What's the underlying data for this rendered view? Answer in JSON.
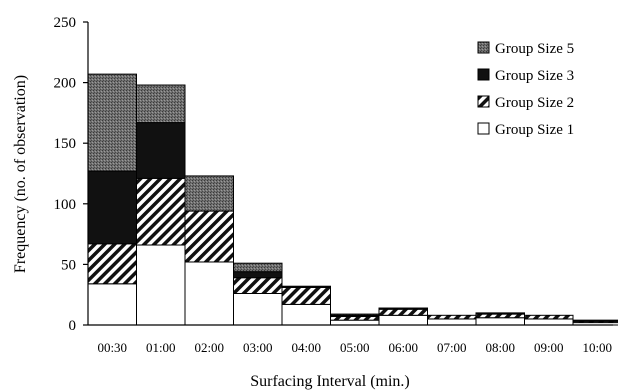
{
  "chart_data": {
    "type": "bar",
    "stacked": true,
    "title": "",
    "xlabel": "Surfacing Interval (min.)",
    "ylabel": "Frequency (no. of observation)",
    "ylim": [
      0,
      250
    ],
    "yticks": [
      0,
      50,
      100,
      150,
      200,
      250
    ],
    "categories": [
      "00:30",
      "01:00",
      "02:00",
      "03:00",
      "04:00",
      "05:00",
      "06:00",
      "07:00",
      "08:00",
      "09:00",
      "10:00"
    ],
    "series": [
      {
        "name": "Group Size 1",
        "pattern": "white",
        "values": [
          34,
          66,
          52,
          26,
          17,
          4,
          8,
          5,
          6,
          5,
          2
        ]
      },
      {
        "name": "Group Size 2",
        "pattern": "hatched",
        "values": [
          33,
          55,
          42,
          13,
          14,
          3,
          5,
          3,
          3,
          3,
          1
        ]
      },
      {
        "name": "Group Size 3",
        "pattern": "black",
        "values": [
          60,
          46,
          0,
          5,
          1,
          1,
          1,
          0,
          1,
          0,
          1
        ]
      },
      {
        "name": "Group Size 5",
        "pattern": "gray",
        "values": [
          80,
          31,
          29,
          7,
          0,
          1,
          0,
          0,
          0,
          0,
          0
        ]
      }
    ],
    "legend_order": [
      "Group Size 5",
      "Group Size 3",
      "Group Size 2",
      "Group Size 1"
    ],
    "legend_position": "top-right",
    "grid": false,
    "colors": {
      "black": "#111111",
      "gray": "#6b6b6b",
      "white": "#ffffff",
      "outline": "#000000"
    }
  }
}
